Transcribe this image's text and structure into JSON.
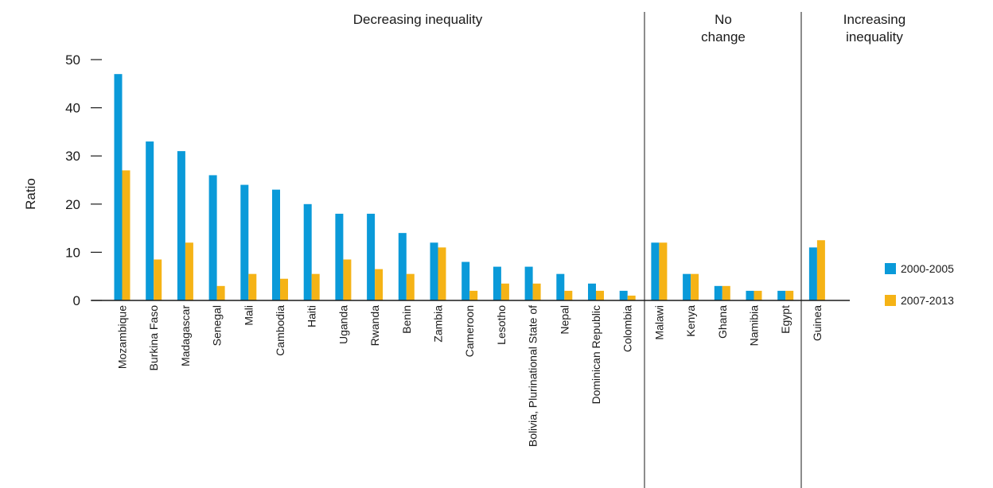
{
  "chart_data": {
    "type": "bar",
    "ylabel": "Ratio",
    "ylim": [
      0,
      50
    ],
    "yticks": [
      0,
      10,
      20,
      30,
      40,
      50
    ],
    "grid": false,
    "legend_position": "right",
    "colors": {
      "2000-2005": "#0a9ad9",
      "2007-2013": "#f5b316",
      "axis": "#1a1a1a"
    },
    "groups": [
      {
        "label": "Decreasing inequality",
        "start": 0,
        "end": 17
      },
      {
        "label": "No change",
        "start": 17,
        "end": 22
      },
      {
        "label": "Increasing inequality",
        "start": 22,
        "end": 23
      }
    ],
    "categories": [
      "Mozambique",
      "Burkina Faso",
      "Madagascar",
      "Senegal",
      "Mali",
      "Cambodia",
      "Haiti",
      "Uganda",
      "Rwanda",
      "Benin",
      "Zambia",
      "Cameroon",
      "Lesotho",
      "Bolivia, Plurinational State of",
      "Nepal",
      "Dominican Republic",
      "Colombia",
      "Malawi",
      "Kenya",
      "Ghana",
      "Namibia",
      "Egypt",
      "Guinea"
    ],
    "series": [
      {
        "name": "2000-2005",
        "values": [
          47,
          33,
          31,
          26,
          24,
          23,
          20,
          18,
          18,
          14,
          12,
          8,
          7,
          7,
          5.5,
          3.5,
          2,
          12,
          5.5,
          3,
          2,
          2,
          11
        ]
      },
      {
        "name": "2007-2013",
        "values": [
          27,
          8.5,
          12,
          3,
          5.5,
          4.5,
          5.5,
          8.5,
          6.5,
          5.5,
          11,
          2,
          3.5,
          3.5,
          2,
          2,
          1,
          12,
          5.5,
          3,
          2,
          2,
          12.5
        ]
      }
    ]
  }
}
